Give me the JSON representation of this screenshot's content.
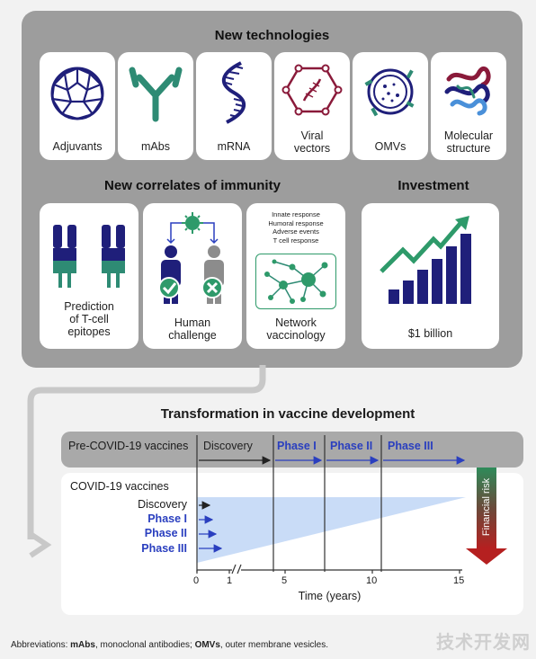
{
  "sections": {
    "new_technologies": "New technologies",
    "correlates": "New correlates of immunity",
    "investment": "Investment"
  },
  "technologies": [
    {
      "label": "Adjuvants",
      "icon": "fullerene-icon"
    },
    {
      "label": "mAbs",
      "icon": "antibody-icon"
    },
    {
      "label": "mRNA",
      "icon": "mrna-strand-icon"
    },
    {
      "label": "Viral\nvectors",
      "icon": "viral-vector-icon"
    },
    {
      "label": "OMVs",
      "icon": "omv-icon"
    },
    {
      "label": "Molecular\nstructure",
      "icon": "protein-structure-icon"
    }
  ],
  "correlates": [
    {
      "label": "Prediction\nof T-cell\nepitopes",
      "icon": "t-cell-receptor-icon"
    },
    {
      "label": "Human\nchallenge",
      "icon": "human-challenge-icon"
    },
    {
      "label": "Network\nvaccinology",
      "icon": "network-icon",
      "list": [
        "Innate response",
        "Humoral response",
        "Adverse events",
        "T cell response"
      ]
    }
  ],
  "investment_card": {
    "label": "$1 billion",
    "icon": "growth-chart-icon"
  },
  "timeline": {
    "title": "Transformation in vaccine development",
    "pre_covid": {
      "label": "Pre-COVID-19 vaccines",
      "phases": [
        "Discovery",
        "Phase I",
        "Phase II",
        "Phase III"
      ]
    },
    "covid": {
      "label": "COVID-19 vaccines",
      "phases": [
        "Discovery",
        "Phase I",
        "Phase II",
        "Phase III"
      ]
    },
    "axis": {
      "ticks": [
        "0",
        "1",
        "5",
        "10",
        "15"
      ],
      "label": "Time (years)"
    },
    "risk_label": "Financial risk"
  },
  "abbreviations": {
    "prefix": "Abbreviations: ",
    "t1": "mAbs",
    "d1": ", monoclonal antibodies; ",
    "t2": "OMVs",
    "d2": ", outer membrane vesicles."
  },
  "watermark": "技术开发网",
  "colors": {
    "navy": "#1f1f7a",
    "teal": "#2e8b74",
    "green": "#2e9a6a",
    "blue": "#2a3fbf",
    "light_blue": "#c9dcf7",
    "red": "#b52020",
    "panel_grey": "#9d9d9d"
  }
}
